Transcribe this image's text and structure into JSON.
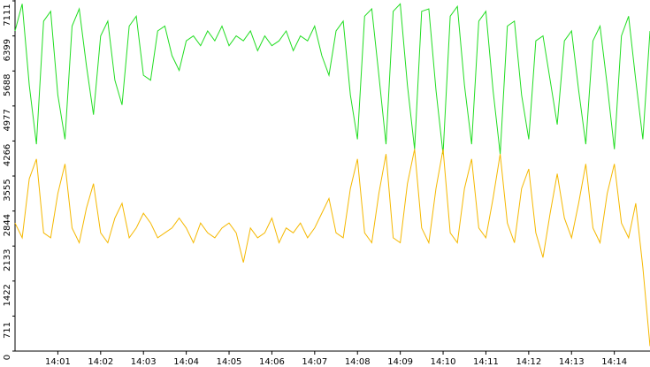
{
  "chart_data": {
    "type": "line",
    "categories": [
      null,
      null,
      null,
      null,
      null,
      null,
      "14:01",
      null,
      null,
      null,
      null,
      null,
      "14:02",
      null,
      null,
      null,
      null,
      null,
      "14:03",
      null,
      null,
      null,
      null,
      null,
      "14:04",
      null,
      null,
      null,
      null,
      null,
      "14:05",
      null,
      null,
      null,
      null,
      null,
      "14:06",
      null,
      null,
      null,
      null,
      null,
      "14:07",
      null,
      null,
      null,
      null,
      null,
      "14:08",
      null,
      null,
      null,
      null,
      null,
      "14:09",
      null,
      null,
      null,
      null,
      null,
      "14:10",
      null,
      null,
      null,
      null,
      null,
      "14:11",
      null,
      null,
      null,
      null,
      null,
      "14:12",
      null,
      null,
      null,
      null,
      null,
      "14:13",
      null,
      null,
      null,
      null,
      null,
      "14:14",
      null,
      null,
      null,
      null,
      null
    ],
    "series": [
      {
        "color": "#22dd22",
        "values": [
          6500,
          7050,
          5400,
          4200,
          6700,
          6900,
          5200,
          4300,
          6600,
          6950,
          5800,
          4800,
          6400,
          6700,
          5500,
          5000,
          6600,
          6800,
          5600,
          5500,
          6500,
          6600,
          6000,
          5700,
          6300,
          6400,
          6200,
          6500,
          6300,
          6600,
          6200,
          6400,
          6300,
          6500,
          6100,
          6400,
          6200,
          6300,
          6500,
          6100,
          6400,
          6300,
          6600,
          6000,
          5600,
          6500,
          6700,
          5200,
          4300,
          6800,
          6950,
          5600,
          4200,
          6900,
          7050,
          5400,
          4100,
          6900,
          6950,
          5300,
          4000,
          6800,
          7000,
          5400,
          4200,
          6700,
          6900,
          5300,
          4000,
          6600,
          6700,
          5200,
          4300,
          6300,
          6400,
          5500,
          4600,
          6300,
          6500,
          5300,
          4200,
          6300,
          6600,
          5400,
          4100,
          6400,
          6800,
          5500,
          4300,
          6500
        ]
      },
      {
        "color": "#f5b800",
        "values": [
          2600,
          2300,
          3500,
          3900,
          2400,
          2300,
          3200,
          3800,
          2500,
          2200,
          2900,
          3400,
          2400,
          2200,
          2700,
          3000,
          2300,
          2500,
          2800,
          2600,
          2300,
          2400,
          2500,
          2700,
          2500,
          2200,
          2600,
          2400,
          2300,
          2500,
          2600,
          2400,
          1800,
          2500,
          2300,
          2400,
          2700,
          2200,
          2500,
          2400,
          2600,
          2300,
          2500,
          2800,
          3100,
          2400,
          2300,
          3300,
          3900,
          2400,
          2200,
          3200,
          4000,
          2300,
          2200,
          3400,
          4100,
          2500,
          2200,
          3300,
          4100,
          2400,
          2200,
          3300,
          3900,
          2500,
          2300,
          3100,
          4000,
          2600,
          2200,
          3300,
          3700,
          2400,
          1900,
          2800,
          3600,
          2700,
          2300,
          3000,
          3800,
          2500,
          2200,
          3200,
          3800,
          2600,
          2300,
          3000,
          1700,
          100
        ]
      }
    ],
    "ylim": [
      0,
      7111
    ],
    "yticks": [
      0,
      711,
      1422,
      2133,
      2844,
      3555,
      4266,
      4977,
      5688,
      6399,
      7111
    ]
  }
}
